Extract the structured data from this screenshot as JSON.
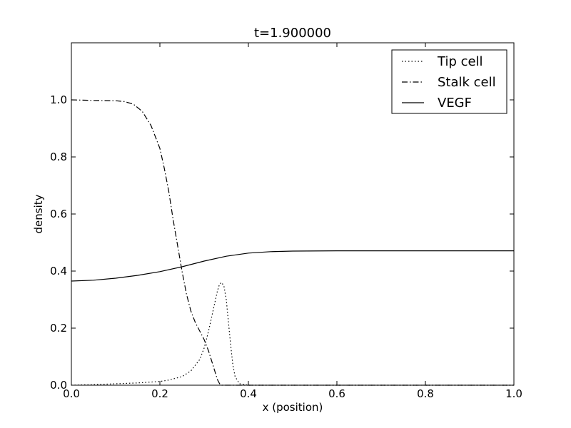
{
  "chart_data": {
    "type": "line",
    "title": "t=1.900000",
    "xlabel": "x (position)",
    "ylabel": "density",
    "xlim": [
      0.0,
      1.0
    ],
    "ylim": [
      0.0,
      1.2
    ],
    "xticks": [
      0.0,
      0.2,
      0.4,
      0.6,
      0.8,
      1.0
    ],
    "xtick_labels": [
      "0.0",
      "0.2",
      "0.4",
      "0.6",
      "0.8",
      "1.0"
    ],
    "yticks": [
      0.0,
      0.2,
      0.4,
      0.6,
      0.8,
      1.0
    ],
    "ytick_labels": [
      "0.0",
      "0.2",
      "0.4",
      "0.6",
      "0.8",
      "1.0"
    ],
    "grid": false,
    "legend_position": "top-right",
    "series": [
      {
        "name": "Tip cell",
        "style": "dotted",
        "color": "#000000",
        "x": [
          0.0,
          0.05,
          0.1,
          0.15,
          0.2,
          0.22,
          0.25,
          0.27,
          0.29,
          0.3,
          0.31,
          0.32,
          0.33,
          0.335,
          0.34,
          0.345,
          0.35,
          0.355,
          0.36,
          0.365,
          0.37,
          0.38,
          0.4,
          0.5,
          0.6,
          0.7,
          0.8,
          0.9,
          1.0
        ],
        "y": [
          0.0,
          0.002,
          0.005,
          0.008,
          0.013,
          0.018,
          0.03,
          0.05,
          0.09,
          0.13,
          0.19,
          0.26,
          0.33,
          0.355,
          0.36,
          0.345,
          0.3,
          0.22,
          0.14,
          0.07,
          0.03,
          0.005,
          0.0,
          0.0,
          0.0,
          0.0,
          0.0,
          0.0,
          0.0
        ]
      },
      {
        "name": "Stalk cell",
        "style": "dashdot",
        "color": "#000000",
        "x": [
          0.0,
          0.05,
          0.1,
          0.12,
          0.14,
          0.16,
          0.18,
          0.2,
          0.21,
          0.22,
          0.23,
          0.24,
          0.25,
          0.26,
          0.27,
          0.28,
          0.29,
          0.3,
          0.31,
          0.32,
          0.33,
          0.335,
          0.34,
          0.36,
          0.4,
          0.5,
          0.6,
          0.7,
          0.8,
          0.9,
          1.0
        ],
        "y": [
          1.0,
          0.998,
          0.997,
          0.994,
          0.985,
          0.96,
          0.91,
          0.83,
          0.76,
          0.68,
          0.58,
          0.49,
          0.4,
          0.32,
          0.26,
          0.22,
          0.19,
          0.16,
          0.12,
          0.07,
          0.02,
          0.005,
          0.0,
          0.0,
          0.0,
          0.0,
          0.0,
          0.0,
          0.0,
          0.0,
          0.0
        ]
      },
      {
        "name": "VEGF",
        "style": "solid",
        "color": "#000000",
        "x": [
          0.0,
          0.05,
          0.1,
          0.15,
          0.2,
          0.25,
          0.3,
          0.35,
          0.4,
          0.45,
          0.5,
          0.6,
          0.7,
          0.8,
          0.9,
          1.0
        ],
        "y": [
          0.365,
          0.368,
          0.375,
          0.385,
          0.398,
          0.415,
          0.435,
          0.452,
          0.463,
          0.468,
          0.47,
          0.471,
          0.471,
          0.471,
          0.471,
          0.471
        ]
      }
    ]
  }
}
